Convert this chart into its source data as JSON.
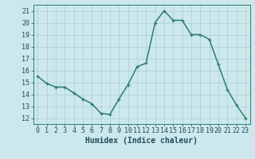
{
  "x": [
    0,
    1,
    2,
    3,
    4,
    5,
    6,
    7,
    8,
    9,
    10,
    11,
    12,
    13,
    14,
    15,
    16,
    17,
    18,
    19,
    20,
    21,
    22,
    23
  ],
  "y": [
    15.5,
    14.9,
    14.6,
    14.6,
    14.1,
    13.6,
    13.2,
    12.4,
    12.3,
    13.6,
    14.8,
    16.3,
    16.6,
    20.0,
    21.0,
    20.2,
    20.2,
    19.0,
    19.0,
    18.6,
    16.5,
    14.4,
    13.1,
    12.0
  ],
  "xlabel": "Humidex (Indice chaleur)",
  "xlim": [
    -0.5,
    23.5
  ],
  "ylim": [
    11.5,
    21.5
  ],
  "yticks": [
    12,
    13,
    14,
    15,
    16,
    17,
    18,
    19,
    20,
    21
  ],
  "xticks": [
    0,
    1,
    2,
    3,
    4,
    5,
    6,
    7,
    8,
    9,
    10,
    11,
    12,
    13,
    14,
    15,
    16,
    17,
    18,
    19,
    20,
    21,
    22,
    23
  ],
  "line_color": "#2e7d6e",
  "bg_color": "#cce8ec",
  "grid_color": "#aacdd4",
  "marker": "+",
  "font_color": "#1e4d5a",
  "label_fontsize": 7.0,
  "tick_fontsize": 6.0
}
